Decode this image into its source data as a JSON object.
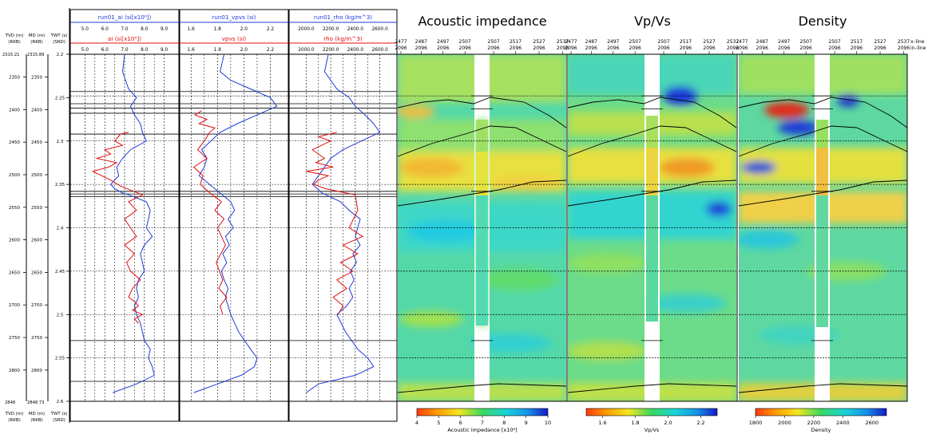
{
  "well_panel": {
    "depth_header": {
      "tvd": "TVD (m)",
      "tvd_ref": "(RKB)",
      "md": "MD (m)",
      "md_ref": "(RKB)",
      "twt": "TWT (s)",
      "twt_ref": "(SRD)"
    },
    "top_value_tvd": "2315.21",
    "top_value_md": "2315.89",
    "bottom_value_tvd": "2848",
    "bottom_value_md": "2848.73",
    "depth_ticks": [
      "2350",
      "2400",
      "2450",
      "2500",
      "2550",
      "2600",
      "2650",
      "2700",
      "2750",
      "2800"
    ],
    "twt_ticks": [
      "2.2",
      "2.25",
      "2.3",
      "2.35",
      "2.4",
      "2.45",
      "2.5",
      "2.55",
      "2.6"
    ],
    "twt_range": [
      2.2,
      2.6
    ],
    "md_range": [
      2315,
      2848
    ],
    "horizons_twt": [
      2.243,
      2.257,
      2.262,
      2.268,
      2.292,
      2.358,
      2.361,
      2.364,
      2.53,
      2.577
    ],
    "dashed_twt": [
      2.248,
      2.3,
      2.35,
      2.4,
      2.45,
      2.5,
      2.55
    ],
    "tracks": [
      {
        "top_label": "run01_ai (si[x10⁶])",
        "bottom_label": "ai (si[x10⁶])",
        "ticks": [
          "5.0",
          "6.0",
          "7.0",
          "8.0",
          "9.0"
        ],
        "range": [
          4.5,
          9.5
        ],
        "tick_values": [
          5,
          6,
          7,
          8,
          9
        ],
        "blue_color": "#1f3bd6",
        "red_color": "#e01010"
      },
      {
        "top_label": "run01_vpvs (si)",
        "bottom_label": "vpvs (si)",
        "ticks": [
          "1.6",
          "1.8",
          "2.0",
          "2.2"
        ],
        "range": [
          1.55,
          2.3
        ],
        "tick_values": [
          1.6,
          1.8,
          2.0,
          2.2
        ],
        "blue_color": "#1f3bd6",
        "red_color": "#e01010"
      },
      {
        "top_label": "run01_rho (kg/m^3)",
        "bottom_label": "rho (kg/m^3)",
        "ticks": [
          "2000.0",
          "2200.0",
          "2400.0",
          "2600.0"
        ],
        "range": [
          1900,
          2700
        ],
        "tick_values": [
          2000,
          2200,
          2400,
          2600
        ],
        "blue_color": "#1f3bd6",
        "red_color": "#e01010"
      }
    ]
  },
  "chart_data": [
    {
      "type": "line",
      "title": "run01_ai vs ai",
      "x_label": "si[x10^6]",
      "y_label": "TWT (s)",
      "xlim": [
        4.5,
        9.5
      ],
      "ylim": [
        2.6,
        2.2
      ],
      "series": [
        {
          "name": "run01_ai",
          "color": "#1f3bd6",
          "x": [
            7.0,
            6.9,
            7.2,
            7.6,
            7.3,
            7.5,
            7.8,
            7.9,
            8.1,
            7.3,
            6.9,
            6.6,
            6.7,
            6.3,
            6.5,
            6.9,
            7.2,
            8.1,
            8.3,
            8.2,
            8.1,
            8.4,
            8.0,
            7.8,
            8.0,
            7.7,
            7.6,
            7.7,
            7.5,
            7.6,
            7.8,
            7.9,
            8.0,
            8.3,
            8.2,
            8.4,
            8.5,
            7.6,
            6.4
          ],
          "y": [
            2.2,
            2.22,
            2.24,
            2.25,
            2.26,
            2.27,
            2.28,
            2.29,
            2.3,
            2.31,
            2.32,
            2.33,
            2.34,
            2.35,
            2.355,
            2.36,
            2.362,
            2.37,
            2.38,
            2.39,
            2.4,
            2.41,
            2.42,
            2.43,
            2.45,
            2.46,
            2.47,
            2.48,
            2.49,
            2.5,
            2.51,
            2.52,
            2.53,
            2.54,
            2.55,
            2.56,
            2.57,
            2.58,
            2.59
          ]
        },
        {
          "name": "ai",
          "color": "#e01010",
          "x": [
            7.2,
            6.8,
            6.5,
            6.9,
            6.0,
            6.3,
            5.6,
            6.6,
            6.2,
            5.4,
            6.3,
            6.8,
            7.9,
            7.2,
            7.6,
            7.0,
            7.3,
            7.6,
            7.0,
            7.5,
            7.1,
            7.3,
            7.8,
            7.4,
            7.2,
            7.5,
            7.7,
            7.4,
            7.9,
            7.5,
            7.7
          ],
          "y": [
            2.29,
            2.292,
            2.3,
            2.305,
            2.31,
            2.315,
            2.32,
            2.325,
            2.33,
            2.335,
            2.345,
            2.352,
            2.362,
            2.37,
            2.38,
            2.39,
            2.4,
            2.41,
            2.42,
            2.43,
            2.44,
            2.45,
            2.46,
            2.47,
            2.48,
            2.485,
            2.49,
            2.495,
            2.5,
            2.505,
            2.51
          ]
        }
      ]
    },
    {
      "type": "line",
      "title": "run01_vpvs vs vpvs",
      "x_label": "si",
      "y_label": "TWT (s)",
      "xlim": [
        1.55,
        2.3
      ],
      "ylim": [
        2.6,
        2.2
      ],
      "series": [
        {
          "name": "run01_vpvs",
          "color": "#1f3bd6",
          "x": [
            1.85,
            1.82,
            1.9,
            2.05,
            2.2,
            2.25,
            2.1,
            1.95,
            1.82,
            1.75,
            1.68,
            1.72,
            1.7,
            1.66,
            1.74,
            1.82,
            1.9,
            1.93,
            1.88,
            1.92,
            1.86,
            1.89,
            1.84,
            1.87,
            1.83,
            1.85,
            1.88,
            1.86,
            1.9,
            1.93,
            1.96,
            2.05,
            2.1,
            2.08,
            1.98,
            1.8,
            1.62
          ],
          "y": [
            2.2,
            2.22,
            2.23,
            2.24,
            2.25,
            2.26,
            2.27,
            2.28,
            2.29,
            2.3,
            2.31,
            2.32,
            2.33,
            2.34,
            2.35,
            2.36,
            2.37,
            2.38,
            2.39,
            2.4,
            2.41,
            2.42,
            2.43,
            2.44,
            2.45,
            2.46,
            2.47,
            2.48,
            2.5,
            2.51,
            2.52,
            2.54,
            2.55,
            2.56,
            2.57,
            2.58,
            2.59
          ]
        },
        {
          "name": "vpvs",
          "color": "#e01010",
          "x": [
            1.68,
            1.63,
            1.72,
            1.66,
            1.78,
            1.74,
            1.7,
            1.65,
            1.72,
            1.62,
            1.69,
            1.67,
            1.76,
            1.83,
            1.78,
            1.85,
            1.8,
            1.86,
            1.79,
            1.84,
            1.81,
            1.87,
            1.82,
            1.84
          ],
          "y": [
            2.265,
            2.27,
            2.275,
            2.28,
            2.285,
            2.29,
            2.3,
            2.31,
            2.32,
            2.33,
            2.34,
            2.35,
            2.362,
            2.37,
            2.38,
            2.39,
            2.4,
            2.42,
            2.44,
            2.46,
            2.47,
            2.48,
            2.49,
            2.5
          ]
        }
      ]
    },
    {
      "type": "line",
      "title": "run01_rho vs rho",
      "x_label": "kg/m^3",
      "y_label": "TWT (s)",
      "xlim": [
        1900,
        2700
      ],
      "ylim": [
        2.6,
        2.2
      ],
      "series": [
        {
          "name": "run01_rho",
          "color": "#1f3bd6",
          "x": [
            2180,
            2150,
            2250,
            2350,
            2400,
            2480,
            2550,
            2600,
            2450,
            2300,
            2200,
            2150,
            2100,
            2050,
            2130,
            2280,
            2350,
            2440,
            2420,
            2400,
            2440,
            2380,
            2410,
            2360,
            2390,
            2350,
            2380,
            2330,
            2250,
            2320,
            2420,
            2500,
            2550,
            2400,
            2100,
            2000
          ],
          "y": [
            2.2,
            2.22,
            2.24,
            2.25,
            2.26,
            2.27,
            2.28,
            2.29,
            2.3,
            2.31,
            2.32,
            2.33,
            2.34,
            2.35,
            2.36,
            2.37,
            2.38,
            2.39,
            2.4,
            2.41,
            2.42,
            2.43,
            2.44,
            2.45,
            2.46,
            2.47,
            2.48,
            2.49,
            2.5,
            2.52,
            2.54,
            2.55,
            2.56,
            2.57,
            2.58,
            2.59
          ]
        },
        {
          "name": "rho",
          "color": "#e01010",
          "x": [
            2250,
            2100,
            2200,
            2050,
            2150,
            2080,
            2220,
            2000,
            2180,
            2100,
            2060,
            2160,
            2400,
            2420,
            2350,
            2460,
            2300,
            2420,
            2280,
            2380,
            2250,
            2330,
            2220,
            2300,
            2260
          ],
          "y": [
            2.29,
            2.295,
            2.3,
            2.31,
            2.32,
            2.325,
            2.33,
            2.335,
            2.34,
            2.345,
            2.35,
            2.355,
            2.362,
            2.38,
            2.4,
            2.41,
            2.42,
            2.43,
            2.44,
            2.45,
            2.46,
            2.47,
            2.48,
            2.49,
            2.5
          ]
        }
      ]
    },
    {
      "type": "heatmap",
      "title": "Acoustic impedance",
      "colorbar_label": "Acoustic impedance [x10⁶]",
      "colorbar_ticks": [
        "4",
        "5",
        "6",
        "7",
        "8",
        "9",
        "10"
      ],
      "colorbar_range": [
        4,
        10
      ]
    },
    {
      "type": "heatmap",
      "title": "Vp/Vs",
      "colorbar_label": "Vp/Vs",
      "colorbar_ticks": [
        "1.6",
        "1.8",
        "2.0",
        "2.2"
      ],
      "colorbar_range": [
        1.5,
        2.3
      ]
    },
    {
      "type": "heatmap",
      "title": "Density",
      "colorbar_label": "Density",
      "colorbar_ticks": [
        "1800",
        "2000",
        "2200",
        "2400",
        "2600"
      ],
      "colorbar_range": [
        1800,
        2700
      ]
    }
  ],
  "section_axis": {
    "xline_labels": [
      "2477",
      "2487",
      "2497",
      "2507",
      "2507",
      "2517",
      "2527",
      "2537"
    ],
    "inline_labels": [
      "2096",
      "2096",
      "2096",
      "2096",
      "2096",
      "2096",
      "2096",
      "2096"
    ],
    "xline_caption": "x–line",
    "inline_caption": "in–line"
  }
}
